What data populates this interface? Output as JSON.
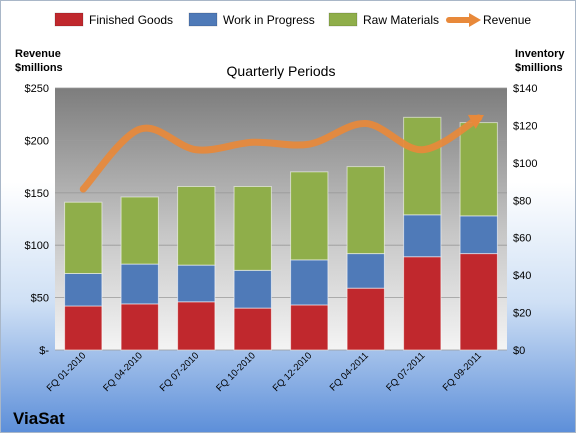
{
  "chart_data": {
    "type": "bar",
    "stacked": true,
    "title": "Quarterly Periods",
    "brand": "ViaSat",
    "categories": [
      "FQ 01-2010",
      "FQ 04-2010",
      "FQ 07-2010",
      "FQ 10-2010",
      "FQ 12-2010",
      "FQ 04-2011",
      "FQ 07-2011",
      "FQ 09-2011"
    ],
    "series": [
      {
        "name": "Finished Goods",
        "color": "#c0282d",
        "values": [
          42,
          44,
          46,
          40,
          43,
          59,
          89,
          92
        ]
      },
      {
        "name": "Work in Progress",
        "color": "#4f7ab8",
        "values": [
          31,
          38,
          35,
          36,
          43,
          33,
          40,
          36
        ]
      },
      {
        "name": "Raw Materials",
        "color": "#8fae4a",
        "values": [
          68,
          64,
          75,
          80,
          84,
          83,
          93,
          89
        ]
      }
    ],
    "line_series": {
      "name": "Revenue",
      "color": "#e8893a",
      "values": [
        86,
        118,
        107,
        111,
        110,
        121,
        107,
        124
      ]
    },
    "y_left": {
      "label": "Revenue\n$millions",
      "lim": [
        0,
        250
      ],
      "ticks": [
        0,
        50,
        100,
        150,
        200,
        250
      ],
      "tick_labels": [
        "$-",
        "$50",
        "$100",
        "$150",
        "$200",
        "$250"
      ]
    },
    "y_right": {
      "label": "Inventory\n$millions",
      "lim": [
        0,
        140
      ],
      "ticks": [
        0,
        20,
        40,
        60,
        80,
        100,
        120,
        140
      ],
      "tick_labels": [
        "$0",
        "$20",
        "$40",
        "$60",
        "$80",
        "$100",
        "$120",
        "$140"
      ]
    },
    "legend_position": "top",
    "grid": true
  }
}
